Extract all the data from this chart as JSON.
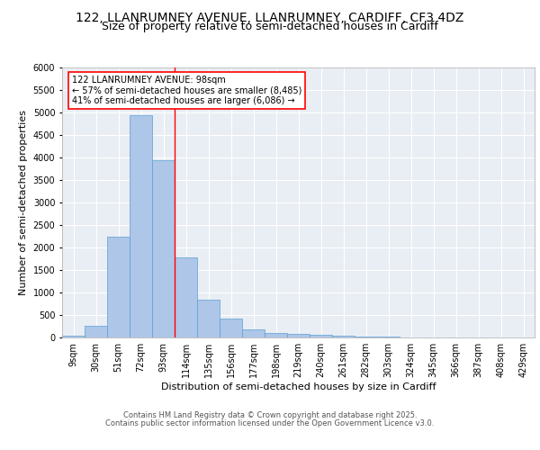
{
  "title1": "122, LLANRUMNEY AVENUE, LLANRUMNEY, CARDIFF, CF3 4DZ",
  "title2": "Size of property relative to semi-detached houses in Cardiff",
  "xlabel": "Distribution of semi-detached houses by size in Cardiff",
  "ylabel": "Number of semi-detached properties",
  "categories": [
    "9sqm",
    "30sqm",
    "51sqm",
    "72sqm",
    "93sqm",
    "114sqm",
    "135sqm",
    "156sqm",
    "177sqm",
    "198sqm",
    "219sqm",
    "240sqm",
    "261sqm",
    "282sqm",
    "303sqm",
    "324sqm",
    "345sqm",
    "366sqm",
    "387sqm",
    "408sqm",
    "429sqm"
  ],
  "values": [
    50,
    260,
    2250,
    4950,
    3950,
    1780,
    850,
    420,
    185,
    110,
    75,
    55,
    35,
    20,
    12,
    8,
    5,
    4,
    3,
    2,
    1
  ],
  "bar_color": "#aec6e8",
  "bar_edge_color": "#5a9fd4",
  "vline_color": "red",
  "annotation_text": "122 LLANRUMNEY AVENUE: 98sqm\n← 57% of semi-detached houses are smaller (8,485)\n41% of semi-detached houses are larger (6,086) →",
  "annotation_box_color": "white",
  "annotation_edge_color": "red",
  "ylim": [
    0,
    6000
  ],
  "yticks": [
    0,
    500,
    1000,
    1500,
    2000,
    2500,
    3000,
    3500,
    4000,
    4500,
    5000,
    5500,
    6000
  ],
  "background_color": "#e8eef4",
  "grid_color": "white",
  "footer1": "Contains HM Land Registry data © Crown copyright and database right 2025.",
  "footer2": "Contains public sector information licensed under the Open Government Licence v3.0.",
  "title_fontsize": 10,
  "subtitle_fontsize": 9,
  "axis_fontsize": 8,
  "tick_fontsize": 7,
  "footer_fontsize": 6
}
